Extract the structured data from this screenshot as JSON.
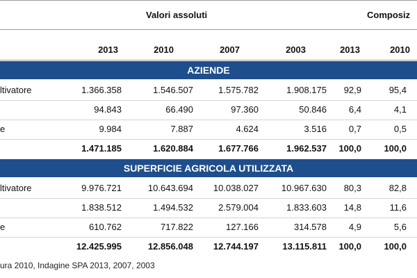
{
  "header": {
    "groups": [
      "Valori assoluti",
      "Composiz"
    ],
    "years": [
      "2013",
      "2010",
      "2007",
      "2003",
      "2013",
      "2010"
    ]
  },
  "sections": [
    {
      "title": "AZIENDE",
      "rows": [
        {
          "label": "ltivatore",
          "values": [
            "1.366.358",
            "1.546.507",
            "1.575.782",
            "1.908.175",
            "92,9",
            "95,4"
          ]
        },
        {
          "values": [
            "94.843",
            "66.490",
            "97.360",
            "50.846",
            "6,4",
            "4,1"
          ]
        },
        {
          "label": "e",
          "values": [
            "9.984",
            "7.887",
            "4.624",
            "3.516",
            "0,7",
            "0,5"
          ]
        },
        {
          "values": [
            "1.471.185",
            "1.620.884",
            "1.677.766",
            "1.962.537",
            "100,0",
            "100,0"
          ],
          "total": true
        }
      ]
    },
    {
      "title": "SUPERFICIE AGRICOLA UTILIZZATA",
      "rows": [
        {
          "label": "ltivatore",
          "values": [
            "9.976.721",
            "10.643.694",
            "10.038.027",
            "10.967.630",
            "80,3",
            "82,8"
          ]
        },
        {
          "values": [
            "1.838.512",
            "1.494.532",
            "2.579.004",
            "1.833.603",
            "14,8",
            "11,6"
          ]
        },
        {
          "label": "e",
          "values": [
            "610.762",
            "717.822",
            "127.166",
            "314.578",
            "4,9",
            "5,6"
          ]
        },
        {
          "values": [
            "12.425.995",
            "12.856.048",
            "12.744.197",
            "13.115.811",
            "100,0",
            "100,0"
          ],
          "total": true
        }
      ]
    }
  ],
  "footnote": "ura 2010, Indagine SPA 2013, 2007, 2003"
}
